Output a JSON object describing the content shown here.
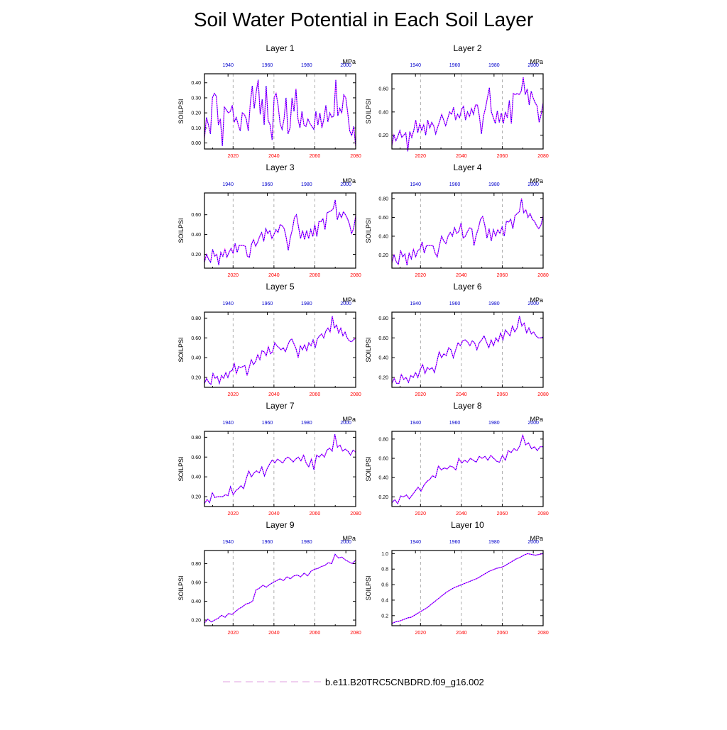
{
  "title": "Soil Water Potential in Each Soil Layer",
  "legend": {
    "label": "b.e11.B20TRC5CNBDRD.f09_g16.002"
  },
  "colors": {
    "obs": "#ff00ff",
    "model": "#0000ff",
    "top_axis": "#0000cc",
    "bottom_axis": "#ff0000",
    "grid": "#999999"
  },
  "chart_data": [
    {
      "type": "line",
      "title": "Layer 1",
      "ylabel": "SOILPSI",
      "units": "MPa",
      "x_bottom": {
        "range": [
          2006,
          2080
        ],
        "ticks": [
          "2020",
          "2040",
          "2060",
          "2080"
        ]
      },
      "x_top": {
        "range": [
          1928,
          2005
        ],
        "ticks": [
          "1940",
          "1960",
          "1980",
          "2000"
        ]
      },
      "ylim": [
        -0.04,
        0.46
      ],
      "yticks": [
        "0.00",
        "0.10",
        "0.20",
        "0.30",
        "0.40"
      ],
      "start_year": 2006,
      "values": [
        0.03,
        0.17,
        0.12,
        0.06,
        0.3,
        0.33,
        0.31,
        0.12,
        0.16,
        -0.02,
        0.24,
        0.22,
        0.2,
        0.21,
        0.25,
        0.14,
        0.17,
        0.12,
        0.08,
        0.2,
        0.19,
        0.16,
        0.08,
        0.26,
        0.38,
        0.23,
        0.34,
        0.42,
        0.19,
        0.29,
        0.12,
        0.38,
        0.15,
        0.12,
        0.02,
        0.3,
        0.33,
        0.25,
        0.13,
        0.09,
        0.16,
        0.3,
        0.06,
        0.1,
        0.3,
        0.21,
        0.36,
        0.16,
        0.1,
        0.21,
        0.12,
        0.11,
        0.16,
        0.13,
        0.11,
        0.09,
        0.21,
        0.12,
        0.2,
        0.1,
        0.16,
        0.25,
        0.14,
        0.2,
        0.17,
        0.18,
        0.42,
        0.18,
        0.23,
        0.2,
        0.32,
        0.3,
        0.2,
        0.08,
        0.05,
        0.11,
        -0.02
      ]
    },
    {
      "type": "line",
      "title": "Layer 2",
      "ylabel": "SOILPSI",
      "units": "MPa",
      "x_bottom": {
        "range": [
          2006,
          2080
        ],
        "ticks": [
          "2020",
          "2040",
          "2060",
          "2080"
        ]
      },
      "x_top": {
        "range": [
          1928,
          2005
        ],
        "ticks": [
          "1940",
          "1960",
          "1980",
          "2000"
        ]
      },
      "ylim": [
        0.08,
        0.73
      ],
      "yticks": [
        "0.20",
        "0.40",
        "0.60"
      ],
      "start_year": 2006,
      "values": [
        0.11,
        0.2,
        0.15,
        0.19,
        0.24,
        0.18,
        0.2,
        0.22,
        0.06,
        0.23,
        0.18,
        0.24,
        0.33,
        0.22,
        0.3,
        0.24,
        0.29,
        0.2,
        0.33,
        0.26,
        0.31,
        0.28,
        0.21,
        0.27,
        0.32,
        0.38,
        0.33,
        0.28,
        0.34,
        0.4,
        0.38,
        0.44,
        0.33,
        0.38,
        0.35,
        0.42,
        0.45,
        0.33,
        0.4,
        0.36,
        0.43,
        0.38,
        0.46,
        0.46,
        0.36,
        0.21,
        0.36,
        0.43,
        0.52,
        0.61,
        0.4,
        0.35,
        0.3,
        0.41,
        0.31,
        0.39,
        0.3,
        0.4,
        0.35,
        0.5,
        0.3,
        0.56,
        0.55,
        0.56,
        0.55,
        0.58,
        0.7,
        0.55,
        0.6,
        0.46,
        0.58,
        0.52,
        0.48,
        0.45,
        0.31,
        0.38,
        0.48
      ]
    },
    {
      "type": "line",
      "title": "Layer 3",
      "ylabel": "SOILPSI",
      "units": "MPa",
      "x_bottom": {
        "range": [
          2006,
          2080
        ],
        "ticks": [
          "2020",
          "2040",
          "2060",
          "2080"
        ]
      },
      "x_top": {
        "range": [
          1928,
          2005
        ],
        "ticks": [
          "1940",
          "1960",
          "1980",
          "2000"
        ]
      },
      "ylim": [
        0.06,
        0.82
      ],
      "yticks": [
        "0.20",
        "0.40",
        "0.60"
      ],
      "start_year": 2006,
      "values": [
        0.12,
        0.2,
        0.15,
        0.12,
        0.25,
        0.18,
        0.2,
        0.09,
        0.22,
        0.18,
        0.25,
        0.17,
        0.22,
        0.26,
        0.21,
        0.31,
        0.22,
        0.29,
        0.29,
        0.29,
        0.28,
        0.18,
        0.17,
        0.3,
        0.35,
        0.28,
        0.32,
        0.38,
        0.42,
        0.33,
        0.46,
        0.41,
        0.44,
        0.36,
        0.4,
        0.45,
        0.42,
        0.5,
        0.49,
        0.46,
        0.37,
        0.24,
        0.37,
        0.45,
        0.57,
        0.6,
        0.48,
        0.36,
        0.44,
        0.35,
        0.44,
        0.36,
        0.45,
        0.38,
        0.5,
        0.38,
        0.53,
        0.53,
        0.56,
        0.45,
        0.62,
        0.63,
        0.64,
        0.66,
        0.75,
        0.55,
        0.62,
        0.57,
        0.63,
        0.6,
        0.56,
        0.5,
        0.41,
        0.46,
        0.59
      ]
    },
    {
      "type": "line",
      "title": "Layer 4",
      "ylabel": "SOILPSI",
      "units": "MPa",
      "x_bottom": {
        "range": [
          2006,
          2080
        ],
        "ticks": [
          "2020",
          "2040",
          "2060",
          "2080"
        ]
      },
      "x_top": {
        "range": [
          1928,
          2005
        ],
        "ticks": [
          "1940",
          "1960",
          "1980",
          "2000"
        ]
      },
      "ylim": [
        0.06,
        0.86
      ],
      "yticks": [
        "0.20",
        "0.40",
        "0.60",
        "0.80"
      ],
      "start_year": 2006,
      "values": [
        0.12,
        0.2,
        0.13,
        0.1,
        0.25,
        0.18,
        0.21,
        0.09,
        0.22,
        0.16,
        0.26,
        0.18,
        0.25,
        0.26,
        0.34,
        0.22,
        0.3,
        0.3,
        0.3,
        0.3,
        0.22,
        0.18,
        0.3,
        0.4,
        0.35,
        0.32,
        0.4,
        0.44,
        0.4,
        0.49,
        0.43,
        0.45,
        0.54,
        0.38,
        0.4,
        0.45,
        0.49,
        0.48,
        0.3,
        0.41,
        0.48,
        0.58,
        0.61,
        0.52,
        0.38,
        0.48,
        0.35,
        0.47,
        0.4,
        0.47,
        0.43,
        0.5,
        0.4,
        0.56,
        0.55,
        0.58,
        0.48,
        0.62,
        0.64,
        0.66,
        0.8,
        0.65,
        0.68,
        0.6,
        0.64,
        0.58,
        0.56,
        0.51,
        0.48,
        0.52,
        0.62
      ]
    },
    {
      "type": "line",
      "title": "Layer 5",
      "ylabel": "SOILPSI",
      "units": "MPa",
      "x_bottom": {
        "range": [
          2006,
          2080
        ],
        "ticks": [
          "2020",
          "2040",
          "2060",
          "2080"
        ]
      },
      "x_top": {
        "range": [
          1928,
          2005
        ],
        "ticks": [
          "1940",
          "1960",
          "1980",
          "2000"
        ]
      },
      "ylim": [
        0.1,
        0.86
      ],
      "yticks": [
        "0.20",
        "0.40",
        "0.60",
        "0.80"
      ],
      "start_year": 2006,
      "values": [
        0.14,
        0.19,
        0.15,
        0.13,
        0.24,
        0.19,
        0.21,
        0.14,
        0.22,
        0.19,
        0.25,
        0.2,
        0.26,
        0.27,
        0.34,
        0.24,
        0.31,
        0.3,
        0.31,
        0.32,
        0.22,
        0.3,
        0.38,
        0.33,
        0.36,
        0.43,
        0.38,
        0.47,
        0.46,
        0.42,
        0.51,
        0.44,
        0.46,
        0.55,
        0.52,
        0.5,
        0.48,
        0.5,
        0.46,
        0.52,
        0.57,
        0.59,
        0.54,
        0.49,
        0.4,
        0.52,
        0.48,
        0.53,
        0.47,
        0.55,
        0.52,
        0.58,
        0.5,
        0.59,
        0.62,
        0.64,
        0.6,
        0.67,
        0.7,
        0.66,
        0.82,
        0.7,
        0.73,
        0.65,
        0.7,
        0.62,
        0.66,
        0.6,
        0.57,
        0.56,
        0.58,
        0.6
      ]
    },
    {
      "type": "line",
      "title": "Layer 6",
      "ylabel": "SOILPSI",
      "units": "MPa",
      "x_bottom": {
        "range": [
          2006,
          2080
        ],
        "ticks": [
          "2020",
          "2040",
          "2060",
          "2080"
        ]
      },
      "x_top": {
        "range": [
          1928,
          2005
        ],
        "ticks": [
          "1940",
          "1960",
          "1980",
          "2000"
        ]
      },
      "ylim": [
        0.1,
        0.86
      ],
      "yticks": [
        "0.20",
        "0.40",
        "0.60",
        "0.80"
      ],
      "start_year": 2006,
      "values": [
        0.14,
        0.19,
        0.14,
        0.14,
        0.23,
        0.18,
        0.2,
        0.15,
        0.22,
        0.2,
        0.25,
        0.2,
        0.28,
        0.33,
        0.24,
        0.3,
        0.28,
        0.3,
        0.25,
        0.35,
        0.46,
        0.4,
        0.44,
        0.42,
        0.5,
        0.48,
        0.4,
        0.48,
        0.55,
        0.52,
        0.57,
        0.58,
        0.56,
        0.52,
        0.57,
        0.55,
        0.48,
        0.55,
        0.58,
        0.62,
        0.56,
        0.5,
        0.58,
        0.52,
        0.6,
        0.56,
        0.65,
        0.58,
        0.68,
        0.65,
        0.62,
        0.72,
        0.66,
        0.7,
        0.82,
        0.72,
        0.75,
        0.65,
        0.7,
        0.64,
        0.66,
        0.62,
        0.6,
        0.6,
        0.61
      ]
    },
    {
      "type": "line",
      "title": "Layer 7",
      "ylabel": "SOILPSI",
      "units": "MPa",
      "x_bottom": {
        "range": [
          2006,
          2080
        ],
        "ticks": [
          "2020",
          "2040",
          "2060",
          "2080"
        ]
      },
      "x_top": {
        "range": [
          1928,
          2005
        ],
        "ticks": [
          "1940",
          "1960",
          "1980",
          "2000"
        ]
      },
      "ylim": [
        0.1,
        0.86
      ],
      "yticks": [
        "0.20",
        "0.40",
        "0.60",
        "0.80"
      ],
      "start_year": 2006,
      "values": [
        0.13,
        0.17,
        0.14,
        0.24,
        0.19,
        0.2,
        0.2,
        0.2,
        0.22,
        0.21,
        0.3,
        0.22,
        0.26,
        0.28,
        0.31,
        0.28,
        0.38,
        0.46,
        0.4,
        0.44,
        0.46,
        0.44,
        0.5,
        0.41,
        0.48,
        0.53,
        0.57,
        0.54,
        0.58,
        0.56,
        0.54,
        0.58,
        0.6,
        0.58,
        0.55,
        0.58,
        0.6,
        0.56,
        0.62,
        0.54,
        0.5,
        0.58,
        0.47,
        0.62,
        0.6,
        0.63,
        0.6,
        0.67,
        0.69,
        0.66,
        0.83,
        0.7,
        0.72,
        0.66,
        0.68,
        0.66,
        0.62,
        0.67,
        0.65
      ]
    },
    {
      "type": "line",
      "title": "Layer 8",
      "ylabel": "SOILPSI",
      "units": "MPa",
      "x_bottom": {
        "range": [
          2006,
          2080
        ],
        "ticks": [
          "2020",
          "2040",
          "2060",
          "2080"
        ]
      },
      "x_top": {
        "range": [
          1928,
          2005
        ],
        "ticks": [
          "1940",
          "1960",
          "1980",
          "2000"
        ]
      },
      "ylim": [
        0.1,
        0.88
      ],
      "yticks": [
        "0.20",
        "0.40",
        "0.60",
        "0.80"
      ],
      "start_year": 2006,
      "values": [
        0.14,
        0.17,
        0.13,
        0.21,
        0.2,
        0.22,
        0.18,
        0.22,
        0.26,
        0.3,
        0.26,
        0.32,
        0.36,
        0.38,
        0.42,
        0.4,
        0.52,
        0.48,
        0.5,
        0.49,
        0.52,
        0.51,
        0.48,
        0.6,
        0.55,
        0.58,
        0.56,
        0.6,
        0.58,
        0.56,
        0.62,
        0.6,
        0.62,
        0.58,
        0.63,
        0.6,
        0.57,
        0.56,
        0.63,
        0.58,
        0.68,
        0.66,
        0.7,
        0.68,
        0.73,
        0.84,
        0.74,
        0.76,
        0.7,
        0.72,
        0.68,
        0.72,
        0.72
      ]
    },
    {
      "type": "line",
      "title": "Layer 9",
      "ylabel": "SOILPSI",
      "units": "MPa",
      "x_bottom": {
        "range": [
          2006,
          2080
        ],
        "ticks": [
          "2020",
          "2040",
          "2060",
          "2080"
        ]
      },
      "x_top": {
        "range": [
          1928,
          2005
        ],
        "ticks": [
          "1940",
          "1960",
          "1980",
          "2000"
        ]
      },
      "ylim": [
        0.14,
        0.94
      ],
      "yticks": [
        "0.20",
        "0.40",
        "0.60",
        "0.80"
      ],
      "start_year": 2006,
      "values": [
        0.17,
        0.21,
        0.18,
        0.2,
        0.22,
        0.25,
        0.23,
        0.27,
        0.26,
        0.29,
        0.32,
        0.34,
        0.37,
        0.38,
        0.4,
        0.52,
        0.54,
        0.57,
        0.55,
        0.58,
        0.6,
        0.62,
        0.64,
        0.62,
        0.66,
        0.64,
        0.67,
        0.68,
        0.66,
        0.7,
        0.67,
        0.72,
        0.74,
        0.75,
        0.77,
        0.78,
        0.81,
        0.8,
        0.9,
        0.86,
        0.87,
        0.84,
        0.82,
        0.8,
        0.84
      ]
    },
    {
      "type": "line",
      "title": "Layer 10",
      "ylabel": "SOILPSI",
      "units": "MPa",
      "x_bottom": {
        "range": [
          2006,
          2080
        ],
        "ticks": [
          "2020",
          "2040",
          "2060",
          "2080"
        ]
      },
      "x_top": {
        "range": [
          1928,
          2005
        ],
        "ticks": [
          "1940",
          "1960",
          "1980",
          "2000"
        ]
      },
      "ylim": [
        0.07,
        1.04
      ],
      "yticks": [
        "0.2",
        "0.4",
        "0.6",
        "0.8",
        "1.0"
      ],
      "start_year": 2006,
      "values": [
        0.1,
        0.12,
        0.13,
        0.15,
        0.17,
        0.18,
        0.21,
        0.24,
        0.27,
        0.3,
        0.34,
        0.38,
        0.42,
        0.46,
        0.5,
        0.53,
        0.56,
        0.58,
        0.6,
        0.62,
        0.64,
        0.66,
        0.68,
        0.71,
        0.74,
        0.77,
        0.79,
        0.81,
        0.82,
        0.84,
        0.87,
        0.9,
        0.93,
        0.95,
        0.98,
        1.0,
        0.99,
        0.98,
        0.99,
        1.0
      ]
    }
  ]
}
